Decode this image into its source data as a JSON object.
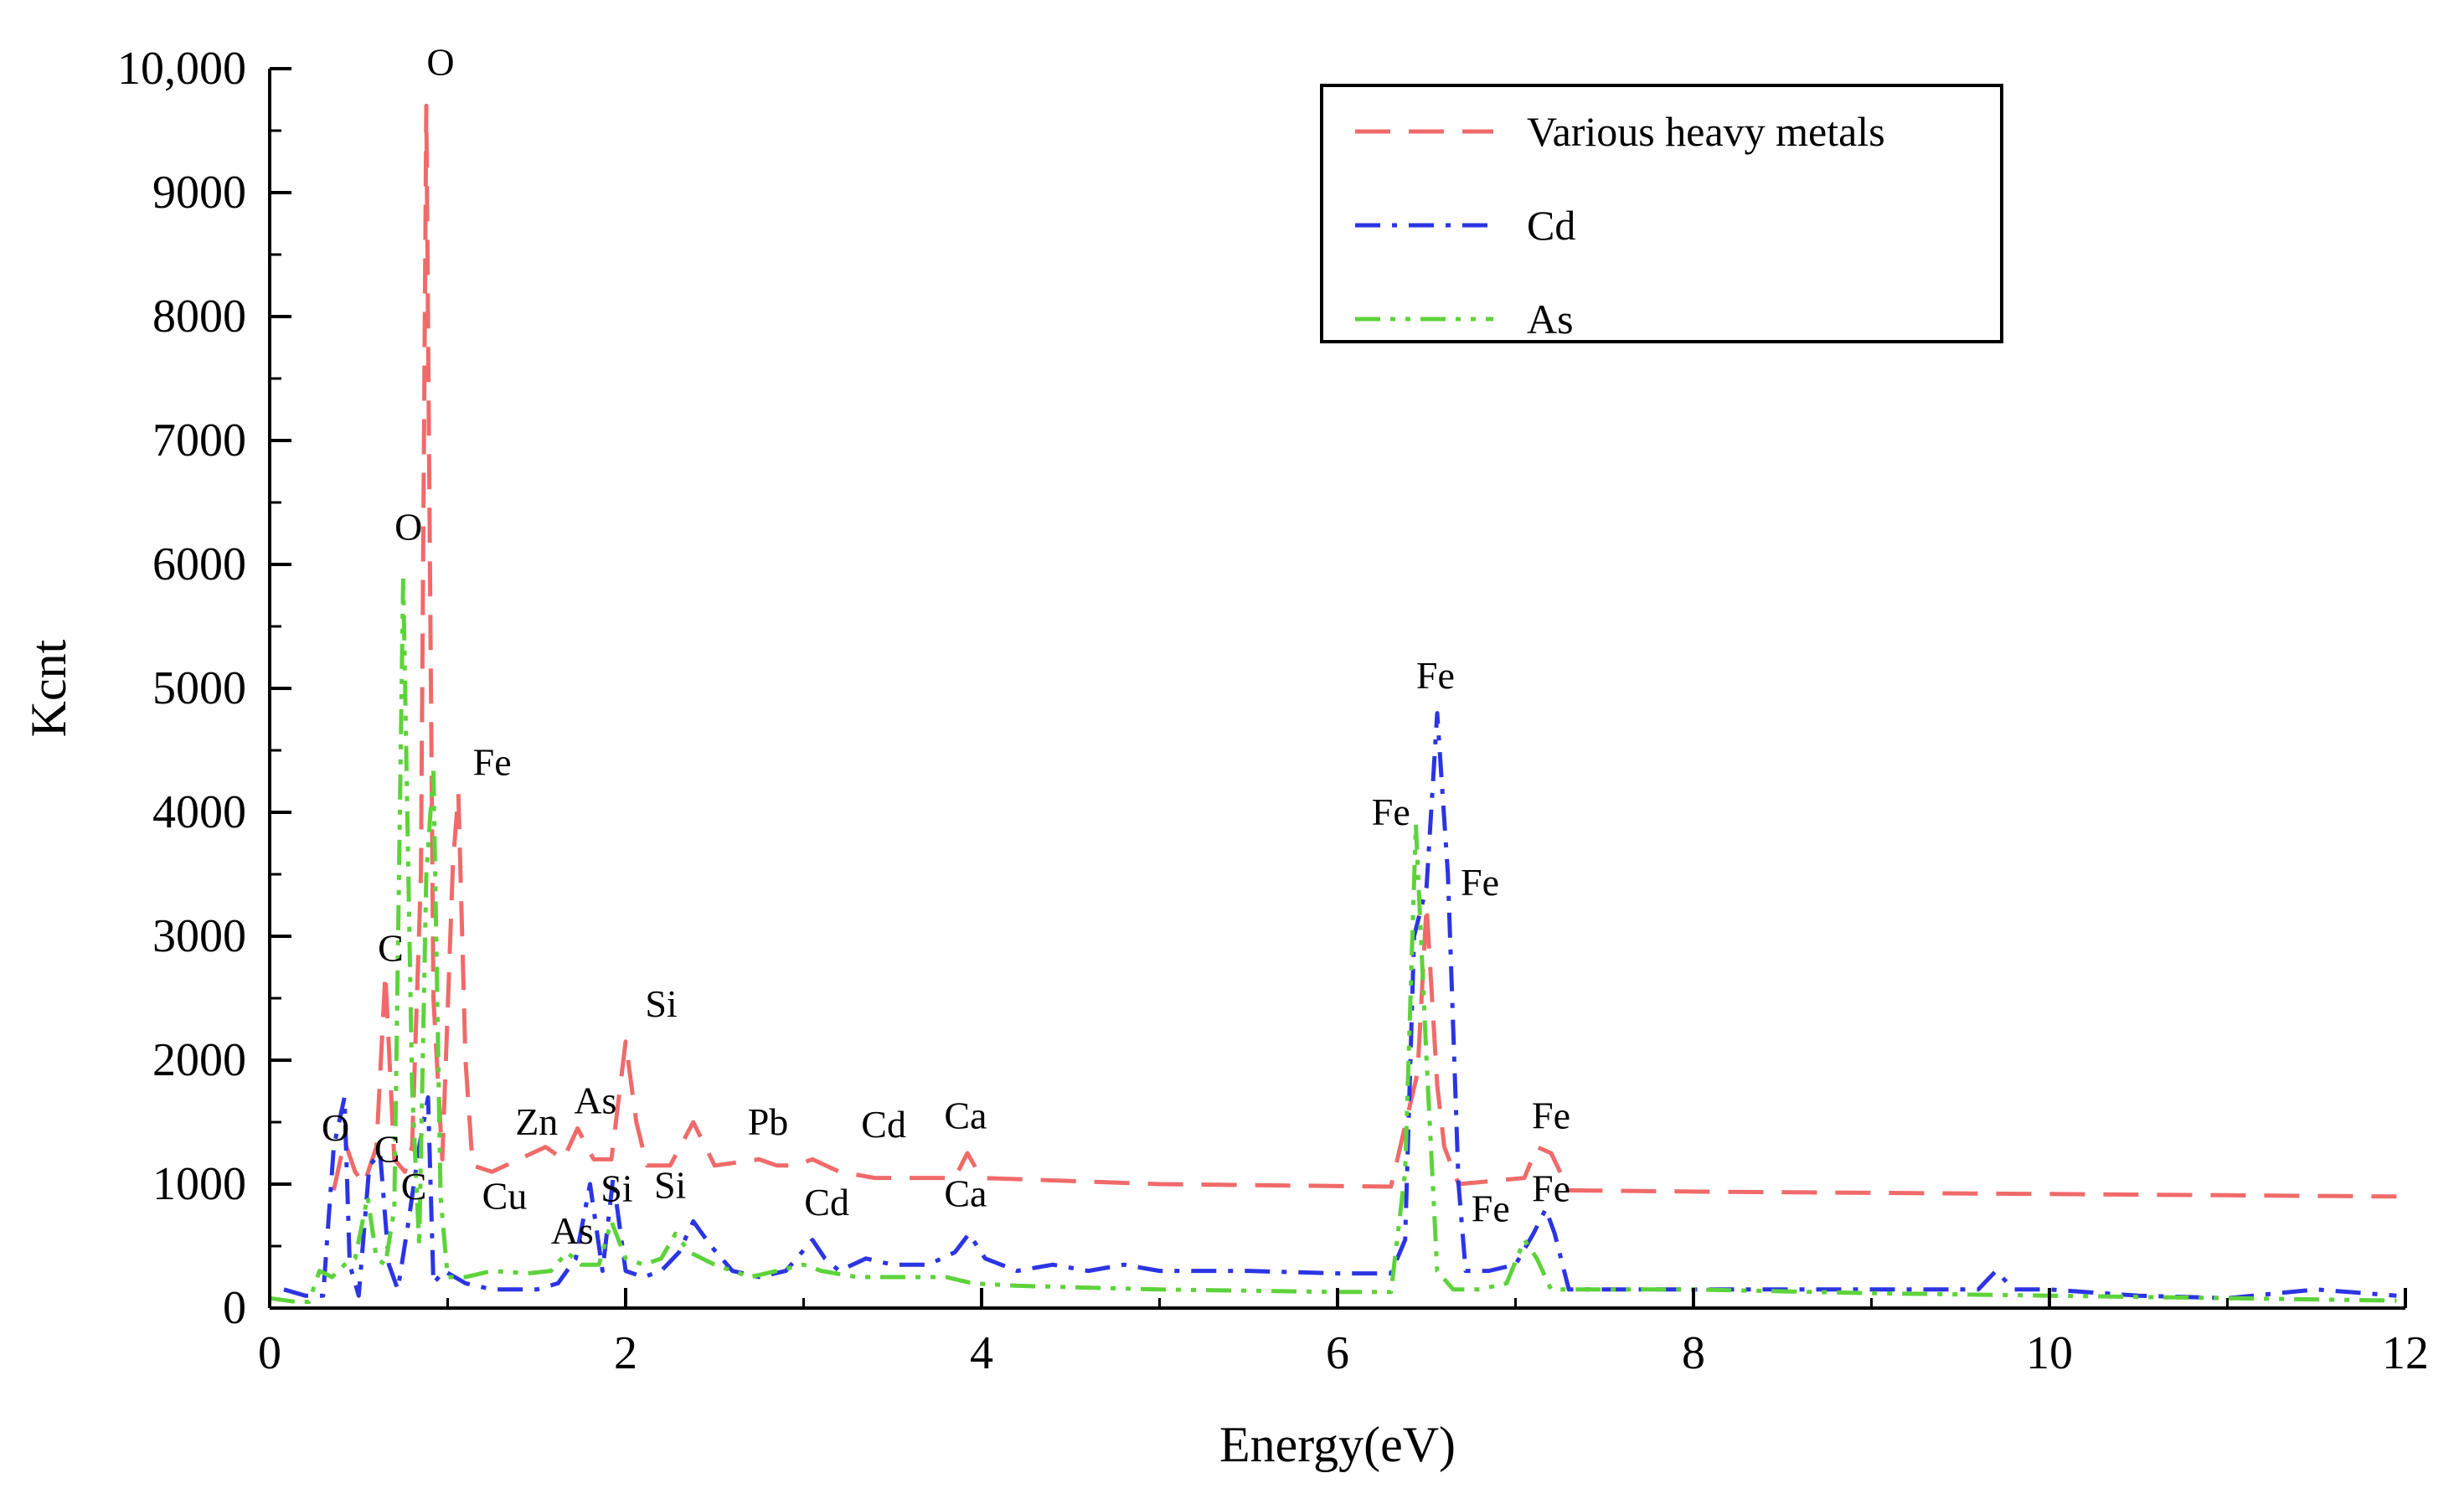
{
  "chart_data": {
    "type": "line",
    "title": "",
    "xlabel": "Energy(eV)",
    "ylabel": "Kcnt",
    "xlim": [
      0,
      12
    ],
    "ylim": [
      0,
      10000
    ],
    "x_ticks": [
      0,
      2,
      4,
      6,
      8,
      10,
      12
    ],
    "x_tick_labels": [
      "0",
      "2",
      "4",
      "6",
      "8",
      "10",
      "12"
    ],
    "y_ticks": [
      0,
      1000,
      2000,
      3000,
      4000,
      5000,
      6000,
      7000,
      8000,
      9000,
      10000
    ],
    "y_tick_labels": [
      "0",
      "1000",
      "2000",
      "3000",
      "4000",
      "5000",
      "6000",
      "7000",
      "8000",
      "9000",
      "10,000"
    ],
    "legend_position": "top-right",
    "series": [
      {
        "name": "Various heavy metals",
        "color": "#f06a6a",
        "dash": "dashed",
        "points": [
          [
            0.36,
            950
          ],
          [
            0.42,
            1350
          ],
          [
            0.48,
            1100
          ],
          [
            0.53,
            1000
          ],
          [
            0.6,
            1300
          ],
          [
            0.65,
            2700
          ],
          [
            0.7,
            1200
          ],
          [
            0.76,
            1100
          ],
          [
            0.8,
            1300
          ],
          [
            0.85,
            3500
          ],
          [
            0.88,
            9700
          ],
          [
            0.92,
            2500
          ],
          [
            0.97,
            1200
          ],
          [
            1.03,
            3600
          ],
          [
            1.06,
            4150
          ],
          [
            1.1,
            2000
          ],
          [
            1.14,
            1150
          ],
          [
            1.25,
            1100
          ],
          [
            1.4,
            1200
          ],
          [
            1.55,
            1300
          ],
          [
            1.65,
            1200
          ],
          [
            1.73,
            1450
          ],
          [
            1.82,
            1200
          ],
          [
            1.92,
            1200
          ],
          [
            2.0,
            2150
          ],
          [
            2.06,
            1500
          ],
          [
            2.12,
            1150
          ],
          [
            2.25,
            1150
          ],
          [
            2.38,
            1500
          ],
          [
            2.5,
            1150
          ],
          [
            2.75,
            1200
          ],
          [
            2.85,
            1150
          ],
          [
            2.95,
            1150
          ],
          [
            3.05,
            1200
          ],
          [
            3.2,
            1100
          ],
          [
            3.4,
            1050
          ],
          [
            3.65,
            1050
          ],
          [
            3.85,
            1050
          ],
          [
            3.92,
            1250
          ],
          [
            4.0,
            1050
          ],
          [
            5.0,
            1000
          ],
          [
            6.3,
            980
          ],
          [
            6.45,
            1900
          ],
          [
            6.5,
            3250
          ],
          [
            6.56,
            1800
          ],
          [
            6.6,
            1300
          ],
          [
            6.68,
            1000
          ],
          [
            7.05,
            1050
          ],
          [
            7.12,
            1300
          ],
          [
            7.2,
            1250
          ],
          [
            7.3,
            950
          ],
          [
            8,
            940
          ],
          [
            9,
            930
          ],
          [
            10,
            920
          ],
          [
            11,
            910
          ],
          [
            11.95,
            900
          ]
        ]
      },
      {
        "name": "Cd",
        "color": "#2b35e3",
        "dash": "dashdot",
        "points": [
          [
            0.08,
            150
          ],
          [
            0.2,
            100
          ],
          [
            0.3,
            100
          ],
          [
            0.36,
            1300
          ],
          [
            0.42,
            1700
          ],
          [
            0.45,
            350
          ],
          [
            0.5,
            100
          ],
          [
            0.56,
            1150
          ],
          [
            0.62,
            1250
          ],
          [
            0.67,
            350
          ],
          [
            0.72,
            150
          ],
          [
            0.78,
            700
          ],
          [
            0.84,
            1300
          ],
          [
            0.89,
            1700
          ],
          [
            0.92,
            200
          ],
          [
            0.98,
            300
          ],
          [
            1.1,
            200
          ],
          [
            1.25,
            150
          ],
          [
            1.5,
            150
          ],
          [
            1.62,
            200
          ],
          [
            1.72,
            400
          ],
          [
            1.8,
            1000
          ],
          [
            1.87,
            300
          ],
          [
            1.93,
            1050
          ],
          [
            2.0,
            300
          ],
          [
            2.1,
            250
          ],
          [
            2.2,
            300
          ],
          [
            2.3,
            450
          ],
          [
            2.38,
            700
          ],
          [
            2.48,
            500
          ],
          [
            2.6,
            300
          ],
          [
            2.75,
            250
          ],
          [
            2.9,
            300
          ],
          [
            3.05,
            550
          ],
          [
            3.12,
            400
          ],
          [
            3.2,
            300
          ],
          [
            3.35,
            400
          ],
          [
            3.5,
            350
          ],
          [
            3.7,
            350
          ],
          [
            3.85,
            450
          ],
          [
            3.93,
            600
          ],
          [
            4.02,
            400
          ],
          [
            4.2,
            300
          ],
          [
            4.4,
            350
          ],
          [
            4.6,
            300
          ],
          [
            4.8,
            350
          ],
          [
            5.0,
            300
          ],
          [
            5.5,
            300
          ],
          [
            6.0,
            280
          ],
          [
            6.3,
            280
          ],
          [
            6.38,
            550
          ],
          [
            6.43,
            3000
          ],
          [
            6.5,
            3400
          ],
          [
            6.56,
            4800
          ],
          [
            6.62,
            3500
          ],
          [
            6.68,
            1000
          ],
          [
            6.72,
            300
          ],
          [
            6.85,
            300
          ],
          [
            7.0,
            350
          ],
          [
            7.1,
            600
          ],
          [
            7.17,
            800
          ],
          [
            7.22,
            600
          ],
          [
            7.3,
            150
          ],
          [
            8,
            150
          ],
          [
            9,
            150
          ],
          [
            9.6,
            150
          ],
          [
            9.7,
            300
          ],
          [
            9.8,
            150
          ],
          [
            10,
            150
          ],
          [
            10.5,
            100
          ],
          [
            11,
            80
          ],
          [
            11.5,
            150
          ],
          [
            11.95,
            100
          ]
        ]
      },
      {
        "name": "As",
        "color": "#5dd33a",
        "dash": "dashdotdot",
        "points": [
          [
            0.0,
            80
          ],
          [
            0.15,
            50
          ],
          [
            0.22,
            50
          ],
          [
            0.28,
            300
          ],
          [
            0.35,
            250
          ],
          [
            0.42,
            350
          ],
          [
            0.48,
            400
          ],
          [
            0.55,
            900
          ],
          [
            0.6,
            400
          ],
          [
            0.65,
            350
          ],
          [
            0.7,
            800
          ],
          [
            0.75,
            5900
          ],
          [
            0.8,
            1800
          ],
          [
            0.84,
            500
          ],
          [
            0.88,
            3500
          ],
          [
            0.92,
            4350
          ],
          [
            0.96,
            900
          ],
          [
            1.0,
            250
          ],
          [
            1.1,
            250
          ],
          [
            1.25,
            300
          ],
          [
            1.45,
            280
          ],
          [
            1.58,
            300
          ],
          [
            1.67,
            450
          ],
          [
            1.75,
            350
          ],
          [
            1.85,
            350
          ],
          [
            1.92,
            700
          ],
          [
            2.0,
            400
          ],
          [
            2.1,
            350
          ],
          [
            2.2,
            400
          ],
          [
            2.28,
            600
          ],
          [
            2.36,
            450
          ],
          [
            2.5,
            350
          ],
          [
            2.7,
            250
          ],
          [
            2.85,
            300
          ],
          [
            3.0,
            350
          ],
          [
            3.1,
            300
          ],
          [
            3.3,
            250
          ],
          [
            3.6,
            250
          ],
          [
            3.8,
            250
          ],
          [
            3.95,
            200
          ],
          [
            4.2,
            180
          ],
          [
            5.0,
            150
          ],
          [
            6.0,
            130
          ],
          [
            6.3,
            130
          ],
          [
            6.38,
            1100
          ],
          [
            6.44,
            3900
          ],
          [
            6.5,
            2000
          ],
          [
            6.56,
            300
          ],
          [
            6.65,
            150
          ],
          [
            6.8,
            150
          ],
          [
            6.95,
            200
          ],
          [
            7.05,
            550
          ],
          [
            7.12,
            400
          ],
          [
            7.2,
            150
          ],
          [
            8,
            150
          ],
          [
            9,
            120
          ],
          [
            10,
            100
          ],
          [
            11,
            80
          ],
          [
            11.95,
            60
          ]
        ]
      }
    ],
    "annotations": [
      {
        "text": "O",
        "x": 0.96,
        "y": 9950
      },
      {
        "text": "O",
        "x": 0.78,
        "y": 6200
      },
      {
        "text": "Fe",
        "x": 1.25,
        "y": 4300
      },
      {
        "text": "C",
        "x": 0.68,
        "y": 2800
      },
      {
        "text": "Si",
        "x": 2.2,
        "y": 2350
      },
      {
        "text": "O",
        "x": 0.37,
        "y": 1350
      },
      {
        "text": "C",
        "x": 0.66,
        "y": 1180
      },
      {
        "text": "C",
        "x": 0.81,
        "y": 880
      },
      {
        "text": "Zn",
        "x": 1.5,
        "y": 1400
      },
      {
        "text": "As",
        "x": 1.83,
        "y": 1570
      },
      {
        "text": "Cu",
        "x": 1.32,
        "y": 800
      },
      {
        "text": "As",
        "x": 1.7,
        "y": 520
      },
      {
        "text": "Si",
        "x": 1.95,
        "y": 860
      },
      {
        "text": "Si",
        "x": 2.25,
        "y": 890
      },
      {
        "text": "Pb",
        "x": 2.8,
        "y": 1400
      },
      {
        "text": "Cd",
        "x": 3.45,
        "y": 1380
      },
      {
        "text": "Ca",
        "x": 3.91,
        "y": 1450
      },
      {
        "text": "Cd",
        "x": 3.13,
        "y": 750
      },
      {
        "text": "Ca",
        "x": 3.91,
        "y": 820
      },
      {
        "text": "Fe",
        "x": 6.55,
        "y": 5000
      },
      {
        "text": "Fe",
        "x": 6.3,
        "y": 3900
      },
      {
        "text": "Fe",
        "x": 6.8,
        "y": 3330
      },
      {
        "text": "Fe",
        "x": 7.2,
        "y": 1450
      },
      {
        "text": "Fe",
        "x": 6.86,
        "y": 700
      },
      {
        "text": "Fe",
        "x": 7.2,
        "y": 860
      }
    ]
  }
}
